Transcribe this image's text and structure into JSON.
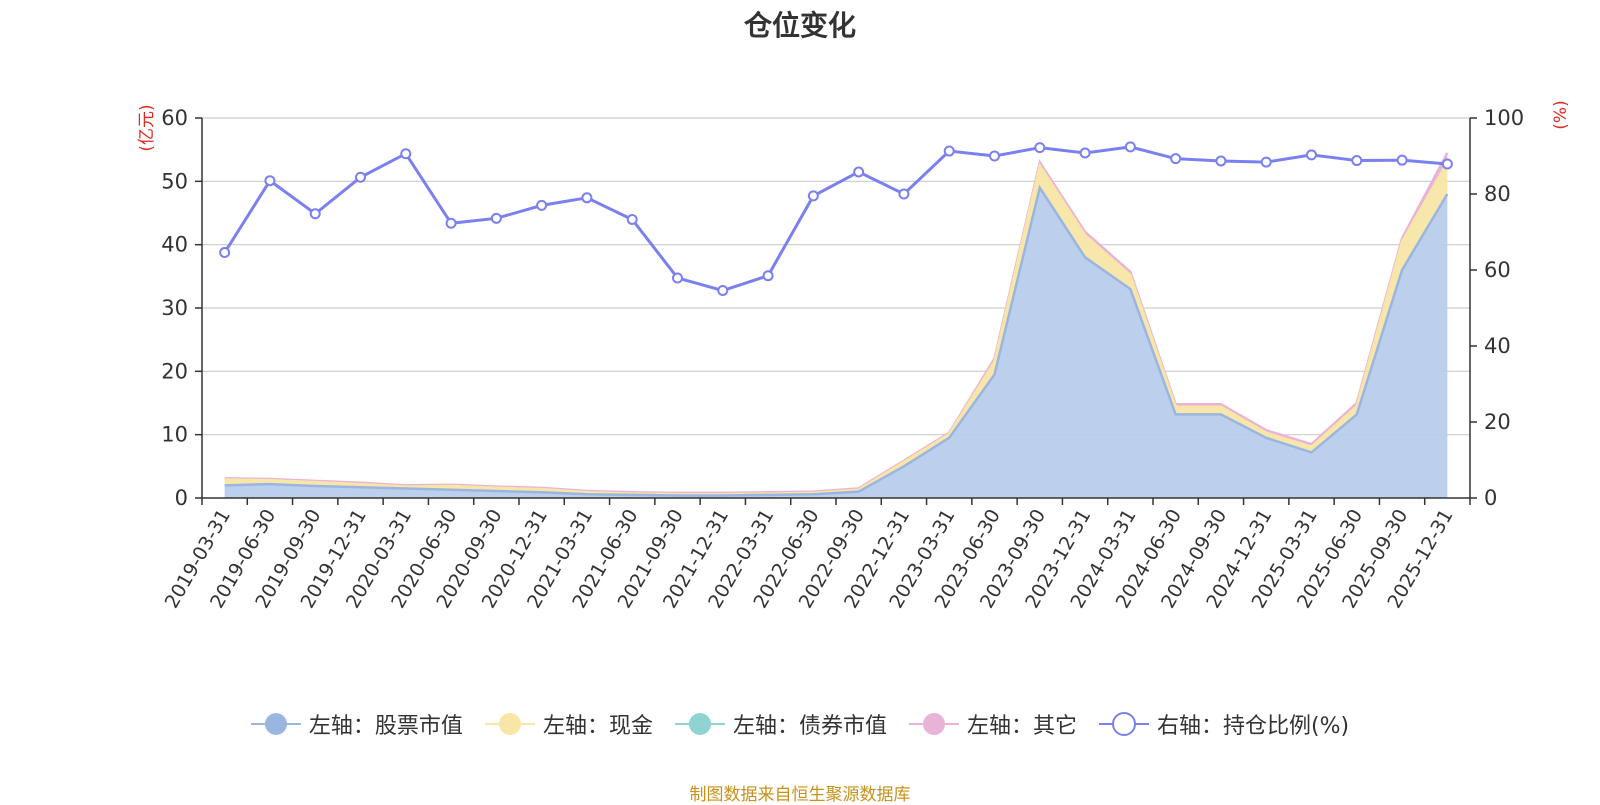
{
  "title": "仓位变化",
  "source_note": "制图数据来自恒生聚源数据库",
  "colors": {
    "stock": "#9ab6e0",
    "stock_fill": "#b8cceb",
    "cash": "#f7e6a6",
    "bond": "#8fd3d3",
    "other": "#e9b3d8",
    "ratio": "#7a80f0",
    "unit": "#e0281e"
  },
  "chart_data": {
    "type": "area",
    "title": "仓位变化",
    "left_axis": {
      "unit": "(亿元)",
      "ylim": [
        0,
        60
      ],
      "ticks": [
        0,
        10,
        20,
        30,
        40,
        50,
        60
      ]
    },
    "right_axis": {
      "unit": "(%)",
      "ylim": [
        0,
        100
      ],
      "ticks": [
        0,
        20,
        40,
        60,
        80,
        100
      ]
    },
    "categories": [
      "2019-03-31",
      "2019-06-30",
      "2019-09-30",
      "2019-12-31",
      "2020-03-31",
      "2020-06-30",
      "2020-09-30",
      "2020-12-31",
      "2021-03-31",
      "2021-06-30",
      "2021-09-30",
      "2021-12-31",
      "2022-03-31",
      "2022-06-30",
      "2022-09-30",
      "2022-12-31",
      "2023-03-31",
      "2023-06-30",
      "2023-09-30",
      "2023-12-31",
      "2024-03-31",
      "2024-06-30",
      "2024-09-30",
      "2024-12-31",
      "2025-03-31",
      "2025-06-30",
      "2025-09-30",
      "2025-12-31"
    ],
    "series": [
      {
        "name": "左轴：股票市值",
        "axis": "left",
        "stacked": true,
        "values": [
          2.0,
          2.2,
          1.9,
          1.7,
          1.5,
          1.3,
          1.1,
          0.9,
          0.6,
          0.5,
          0.4,
          0.4,
          0.5,
          0.6,
          1.0,
          5.0,
          9.5,
          19.5,
          49.0,
          38.0,
          33.0,
          13.2,
          13.2,
          9.5,
          7.2,
          13.2,
          36.0,
          48.0
        ]
      },
      {
        "name": "左轴：现金",
        "axis": "left",
        "stacked": true,
        "values": [
          0.9,
          0.6,
          0.6,
          0.5,
          0.3,
          0.6,
          0.5,
          0.5,
          0.3,
          0.2,
          0.2,
          0.2,
          0.2,
          0.2,
          0.3,
          0.7,
          0.6,
          2.0,
          3.5,
          3.5,
          2.2,
          1.2,
          1.2,
          0.8,
          0.9,
          1.3,
          4.5,
          5.0
        ]
      },
      {
        "name": "左轴：债券市值",
        "axis": "left",
        "stacked": true,
        "values": [
          0,
          0,
          0,
          0,
          0,
          0,
          0,
          0,
          0,
          0,
          0,
          0,
          0,
          0,
          0,
          0,
          0,
          0,
          0,
          0,
          0,
          0,
          0,
          0,
          0,
          0,
          0,
          0
        ]
      },
      {
        "name": "左轴：其它",
        "axis": "left",
        "stacked": true,
        "values": [
          0.2,
          0.2,
          0.2,
          0.2,
          0.2,
          0.2,
          0.2,
          0.2,
          0.2,
          0.2,
          0.2,
          0.2,
          0.2,
          0.2,
          0.2,
          0.2,
          0.2,
          0.5,
          0.5,
          0.5,
          0.5,
          0.4,
          0.4,
          0.4,
          0.4,
          0.5,
          0.5,
          1.5
        ]
      },
      {
        "name": "右轴：持仓比例(%)",
        "axis": "right",
        "type": "line",
        "values": [
          64.6,
          83.5,
          74.8,
          84.4,
          90.6,
          72.3,
          73.6,
          77.0,
          79.0,
          73.3,
          57.9,
          54.6,
          58.5,
          79.5,
          85.8,
          80.0,
          91.3,
          90.0,
          92.2,
          90.8,
          92.4,
          89.3,
          88.7,
          88.4,
          90.3,
          88.8,
          88.9,
          87.9
        ]
      }
    ]
  }
}
